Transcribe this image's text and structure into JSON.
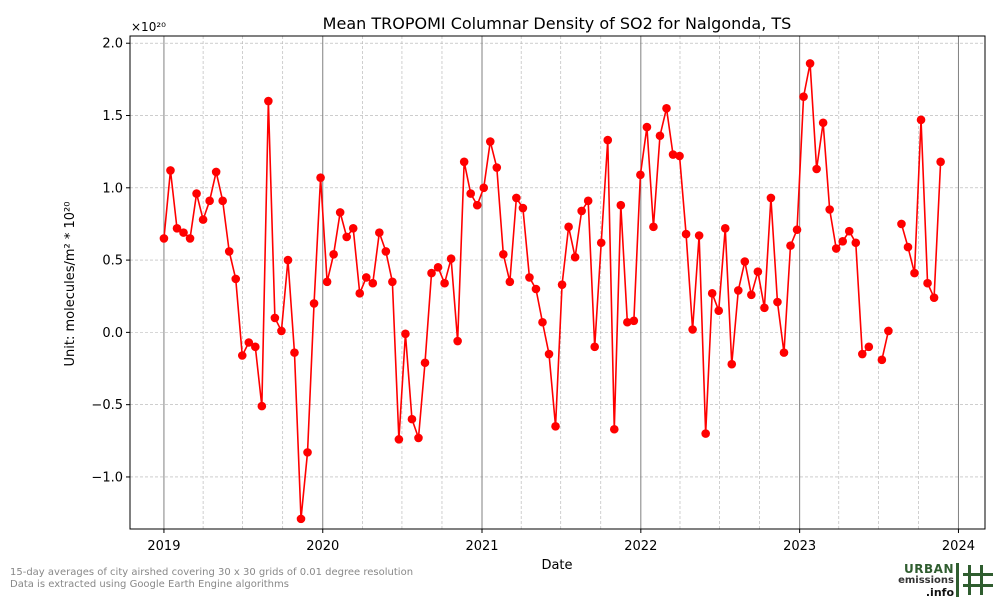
{
  "chart_data": {
    "type": "line",
    "title": "Mean TROPOMI Columnar Density of SO2 for Nalgonda, TS",
    "xlabel": "Date",
    "ylabel": "Unit: molecules/m² * 10²⁰",
    "y_offset_label": "×10²⁰",
    "x_axis": "date",
    "xlim": [
      "2018-10-15",
      "2024-03-02"
    ],
    "ylim": [
      -1.36,
      2.05
    ],
    "x_ticks": [
      "2019-01-01",
      "2020-01-01",
      "2021-01-01",
      "2022-01-01",
      "2023-01-01",
      "2024-01-01"
    ],
    "x_tick_labels": [
      "2019",
      "2020",
      "2021",
      "2022",
      "2023",
      "2024"
    ],
    "y_ticks": [
      -1.0,
      -0.5,
      0.0,
      0.5,
      1.0,
      1.5,
      2.0
    ],
    "y_tick_labels": [
      "−1.0",
      "−0.5",
      "0.0",
      "0.5",
      "1.0",
      "1.5",
      "2.0"
    ],
    "grid": true,
    "line_color": "#ff0000",
    "marker": "circle",
    "series": [
      {
        "points": [
          [
            "2019-01-01",
            0.65
          ],
          [
            "2019-01-16",
            1.12
          ],
          [
            "2019-01-31",
            0.72
          ],
          [
            "2019-02-15",
            0.69
          ],
          [
            "2019-03-02",
            0.65
          ],
          [
            "2019-03-17",
            0.96
          ],
          [
            "2019-04-01",
            0.78
          ],
          [
            "2019-04-16",
            0.91
          ],
          [
            "2019-05-01",
            1.11
          ],
          [
            "2019-05-16",
            0.91
          ],
          [
            "2019-05-31",
            0.56
          ],
          [
            "2019-06-15",
            0.37
          ],
          [
            "2019-06-30",
            -0.16
          ],
          [
            "2019-07-15",
            -0.07
          ],
          [
            "2019-07-30",
            -0.1
          ],
          [
            "2019-08-14",
            -0.51
          ],
          [
            "2019-08-29",
            1.6
          ],
          [
            "2019-09-13",
            0.1
          ],
          [
            "2019-09-28",
            0.01
          ],
          [
            "2019-10-13",
            0.5
          ],
          [
            "2019-10-28",
            -0.14
          ],
          [
            "2019-11-12",
            -1.29
          ],
          [
            "2019-11-27",
            -0.83
          ],
          [
            "2019-12-12",
            0.2
          ],
          [
            "2019-12-27",
            1.07
          ],
          [
            "2020-01-11",
            0.35
          ],
          [
            "2020-01-26",
            0.54
          ],
          [
            "2020-02-10",
            0.83
          ],
          [
            "2020-02-25",
            0.66
          ],
          [
            "2020-03-11",
            0.72
          ],
          [
            "2020-03-26",
            0.27
          ],
          [
            "2020-04-10",
            0.38
          ],
          [
            "2020-04-25",
            0.34
          ],
          [
            "2020-05-10",
            0.69
          ],
          [
            "2020-05-25",
            0.56
          ],
          [
            "2020-06-09",
            0.35
          ],
          [
            "2020-06-24",
            -0.74
          ],
          [
            "2020-07-09",
            -0.01
          ],
          [
            "2020-07-24",
            -0.6
          ],
          [
            "2020-08-08",
            -0.73
          ],
          [
            "2020-08-23",
            -0.21
          ],
          [
            "2020-09-07",
            0.41
          ],
          [
            "2020-09-22",
            0.45
          ],
          [
            "2020-10-07",
            0.34
          ],
          [
            "2020-10-22",
            0.51
          ],
          [
            "2020-11-06",
            -0.06
          ],
          [
            "2020-11-21",
            1.18
          ],
          [
            "2020-12-06",
            0.96
          ],
          [
            "2020-12-21",
            0.88
          ],
          [
            "2021-01-05",
            1.0
          ],
          [
            "2021-01-20",
            1.32
          ],
          [
            "2021-02-04",
            1.14
          ],
          [
            "2021-02-19",
            0.54
          ],
          [
            "2021-03-06",
            0.35
          ],
          [
            "2021-03-21",
            0.93
          ],
          [
            "2021-04-05",
            0.86
          ],
          [
            "2021-04-20",
            0.38
          ],
          [
            "2021-05-05",
            0.3
          ],
          [
            "2021-05-20",
            0.07
          ],
          [
            "2021-06-04",
            -0.15
          ],
          [
            "2021-06-19",
            -0.65
          ],
          [
            "2021-07-04",
            0.33
          ],
          [
            "2021-07-19",
            0.73
          ],
          [
            "2021-08-03",
            0.52
          ],
          [
            "2021-08-18",
            0.84
          ],
          [
            "2021-09-02",
            0.91
          ],
          [
            "2021-09-17",
            -0.1
          ],
          [
            "2021-10-02",
            0.62
          ],
          [
            "2021-10-17",
            1.33
          ],
          [
            "2021-11-01",
            -0.67
          ],
          [
            "2021-11-16",
            0.88
          ],
          [
            "2021-12-01",
            0.07
          ],
          [
            "2021-12-16",
            0.08
          ],
          [
            "2021-12-31",
            1.09
          ],
          [
            "2022-01-15",
            1.42
          ],
          [
            "2022-01-30",
            0.73
          ],
          [
            "2022-02-14",
            1.36
          ],
          [
            "2022-03-01",
            1.55
          ],
          [
            "2022-03-16",
            1.23
          ],
          [
            "2022-03-31",
            1.22
          ],
          [
            "2022-04-15",
            0.68
          ],
          [
            "2022-04-30",
            0.02
          ],
          [
            "2022-05-15",
            0.67
          ],
          [
            "2022-05-30",
            -0.7
          ],
          [
            "2022-06-14",
            0.27
          ],
          [
            "2022-06-29",
            0.15
          ],
          [
            "2022-07-14",
            0.72
          ],
          [
            "2022-07-29",
            -0.22
          ],
          [
            "2022-08-13",
            0.29
          ],
          [
            "2022-08-28",
            0.49
          ],
          [
            "2022-09-12",
            0.26
          ],
          [
            "2022-09-27",
            0.42
          ],
          [
            "2022-10-12",
            0.17
          ],
          [
            "2022-10-27",
            0.93
          ],
          [
            "2022-11-11",
            0.21
          ],
          [
            "2022-11-26",
            -0.14
          ],
          [
            "2022-12-11",
            0.6
          ],
          [
            "2022-12-26",
            0.71
          ],
          [
            "2023-01-10",
            1.63
          ],
          [
            "2023-01-25",
            1.86
          ],
          [
            "2023-02-09",
            1.13
          ],
          [
            "2023-02-24",
            1.45
          ],
          [
            "2023-03-11",
            0.85
          ],
          [
            "2023-03-26",
            0.58
          ],
          [
            "2023-04-10",
            0.63
          ],
          [
            "2023-04-25",
            0.7
          ],
          [
            "2023-05-10",
            0.62
          ],
          [
            "2023-05-25",
            -0.15
          ],
          [
            "2023-06-09",
            -0.1
          ],
          null,
          [
            "2023-07-09",
            -0.19
          ],
          [
            "2023-07-24",
            0.01
          ],
          null,
          [
            "2023-08-23",
            0.75
          ],
          [
            "2023-09-07",
            0.59
          ],
          [
            "2023-09-22",
            0.41
          ],
          [
            "2023-10-07",
            1.47
          ],
          [
            "2023-10-22",
            0.34
          ],
          [
            "2023-11-06",
            0.24
          ],
          [
            "2023-11-21",
            1.18
          ]
        ]
      }
    ]
  },
  "footnotes": [
    "15-day averages of city airshed covering 30 x 30 grids of 0.01 degree resolution",
    "Data is extracted using Google Earth Engine algorithms"
  ],
  "logo": {
    "line1": "URBAN",
    "line2": "emissions",
    "line3": ".info",
    "colors": {
      "primary": "#2f5d2f",
      "secondary": "#333333"
    }
  }
}
